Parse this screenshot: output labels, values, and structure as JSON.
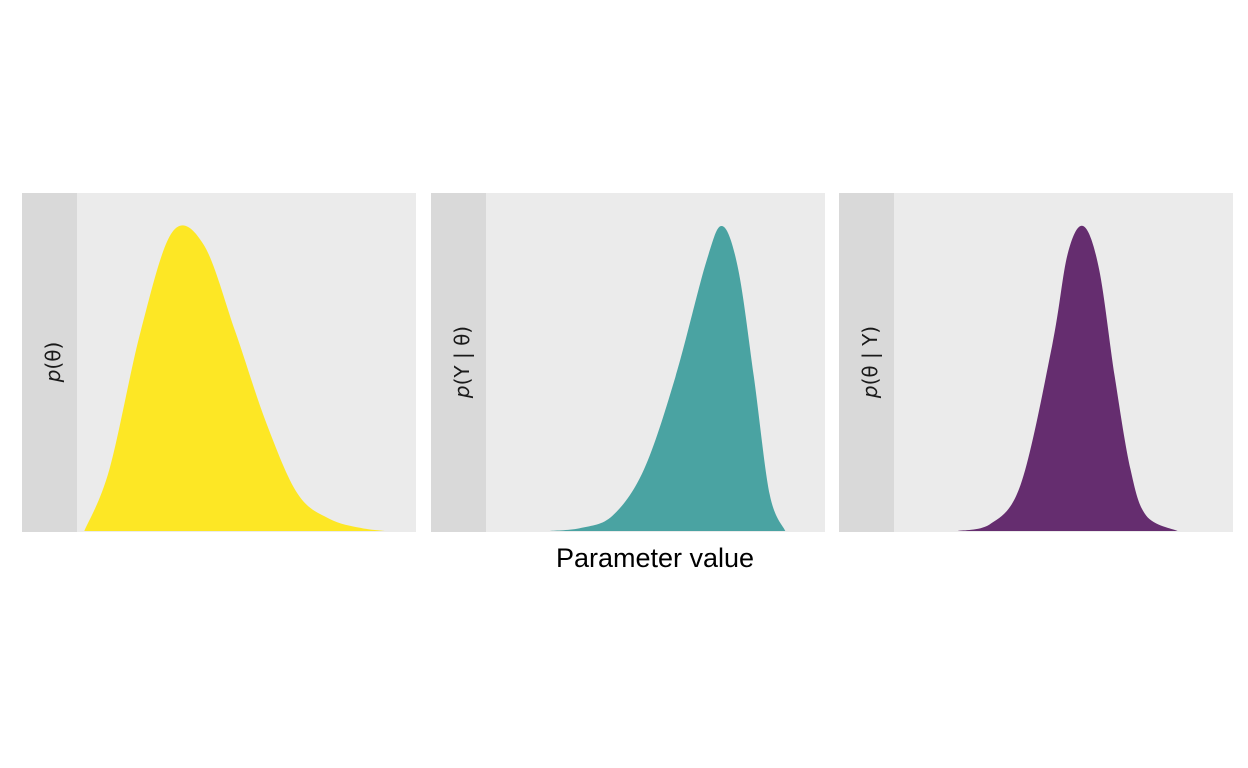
{
  "chart_data": {
    "type": "area",
    "layout": "facets-1x3",
    "xlabel": "Parameter value",
    "ylabel": "",
    "title": "",
    "x_ticks_shown": false,
    "y_ticks_shown": false,
    "grid": false,
    "legend": "none",
    "xlim": [
      0,
      1
    ],
    "panels": [
      {
        "strip_label": "p(θ)",
        "label_italic": "p",
        "label_rest": "(θ)",
        "color": "#FDE725",
        "xlim": [
          0,
          1
        ],
        "ylim": [
          0,
          1
        ],
        "points": [
          [
            0.02,
            0.0
          ],
          [
            0.1,
            0.2
          ],
          [
            0.2,
            0.65
          ],
          [
            0.3,
            0.97
          ],
          [
            0.4,
            0.93
          ],
          [
            0.5,
            0.65
          ],
          [
            0.6,
            0.35
          ],
          [
            0.7,
            0.12
          ],
          [
            0.8,
            0.04
          ],
          [
            0.9,
            0.01
          ],
          [
            0.98,
            0.0
          ]
        ]
      },
      {
        "strip_label": "p(Y | θ)",
        "label_italic": "p",
        "label_rest": "(Y | θ)",
        "color": "#4AA3A2",
        "xlim": [
          0,
          1
        ],
        "ylim": [
          0,
          1
        ],
        "points": [
          [
            0.2,
            0.0
          ],
          [
            0.3,
            0.01
          ],
          [
            0.4,
            0.05
          ],
          [
            0.5,
            0.2
          ],
          [
            0.6,
            0.5
          ],
          [
            0.7,
            0.88
          ],
          [
            0.75,
            0.99
          ],
          [
            0.8,
            0.85
          ],
          [
            0.85,
            0.5
          ],
          [
            0.9,
            0.12
          ],
          [
            0.95,
            0.0
          ]
        ]
      },
      {
        "strip_label": "p(θ | Y)",
        "label_italic": "p",
        "label_rest": "(θ | Y)",
        "color": "#652D6F",
        "xlim": [
          0,
          1
        ],
        "ylim": [
          0,
          1
        ],
        "points": [
          [
            0.2,
            0.0
          ],
          [
            0.3,
            0.02
          ],
          [
            0.4,
            0.15
          ],
          [
            0.5,
            0.6
          ],
          [
            0.55,
            0.9
          ],
          [
            0.6,
            0.99
          ],
          [
            0.65,
            0.85
          ],
          [
            0.7,
            0.5
          ],
          [
            0.75,
            0.2
          ],
          [
            0.8,
            0.05
          ],
          [
            0.9,
            0.0
          ]
        ]
      }
    ]
  }
}
